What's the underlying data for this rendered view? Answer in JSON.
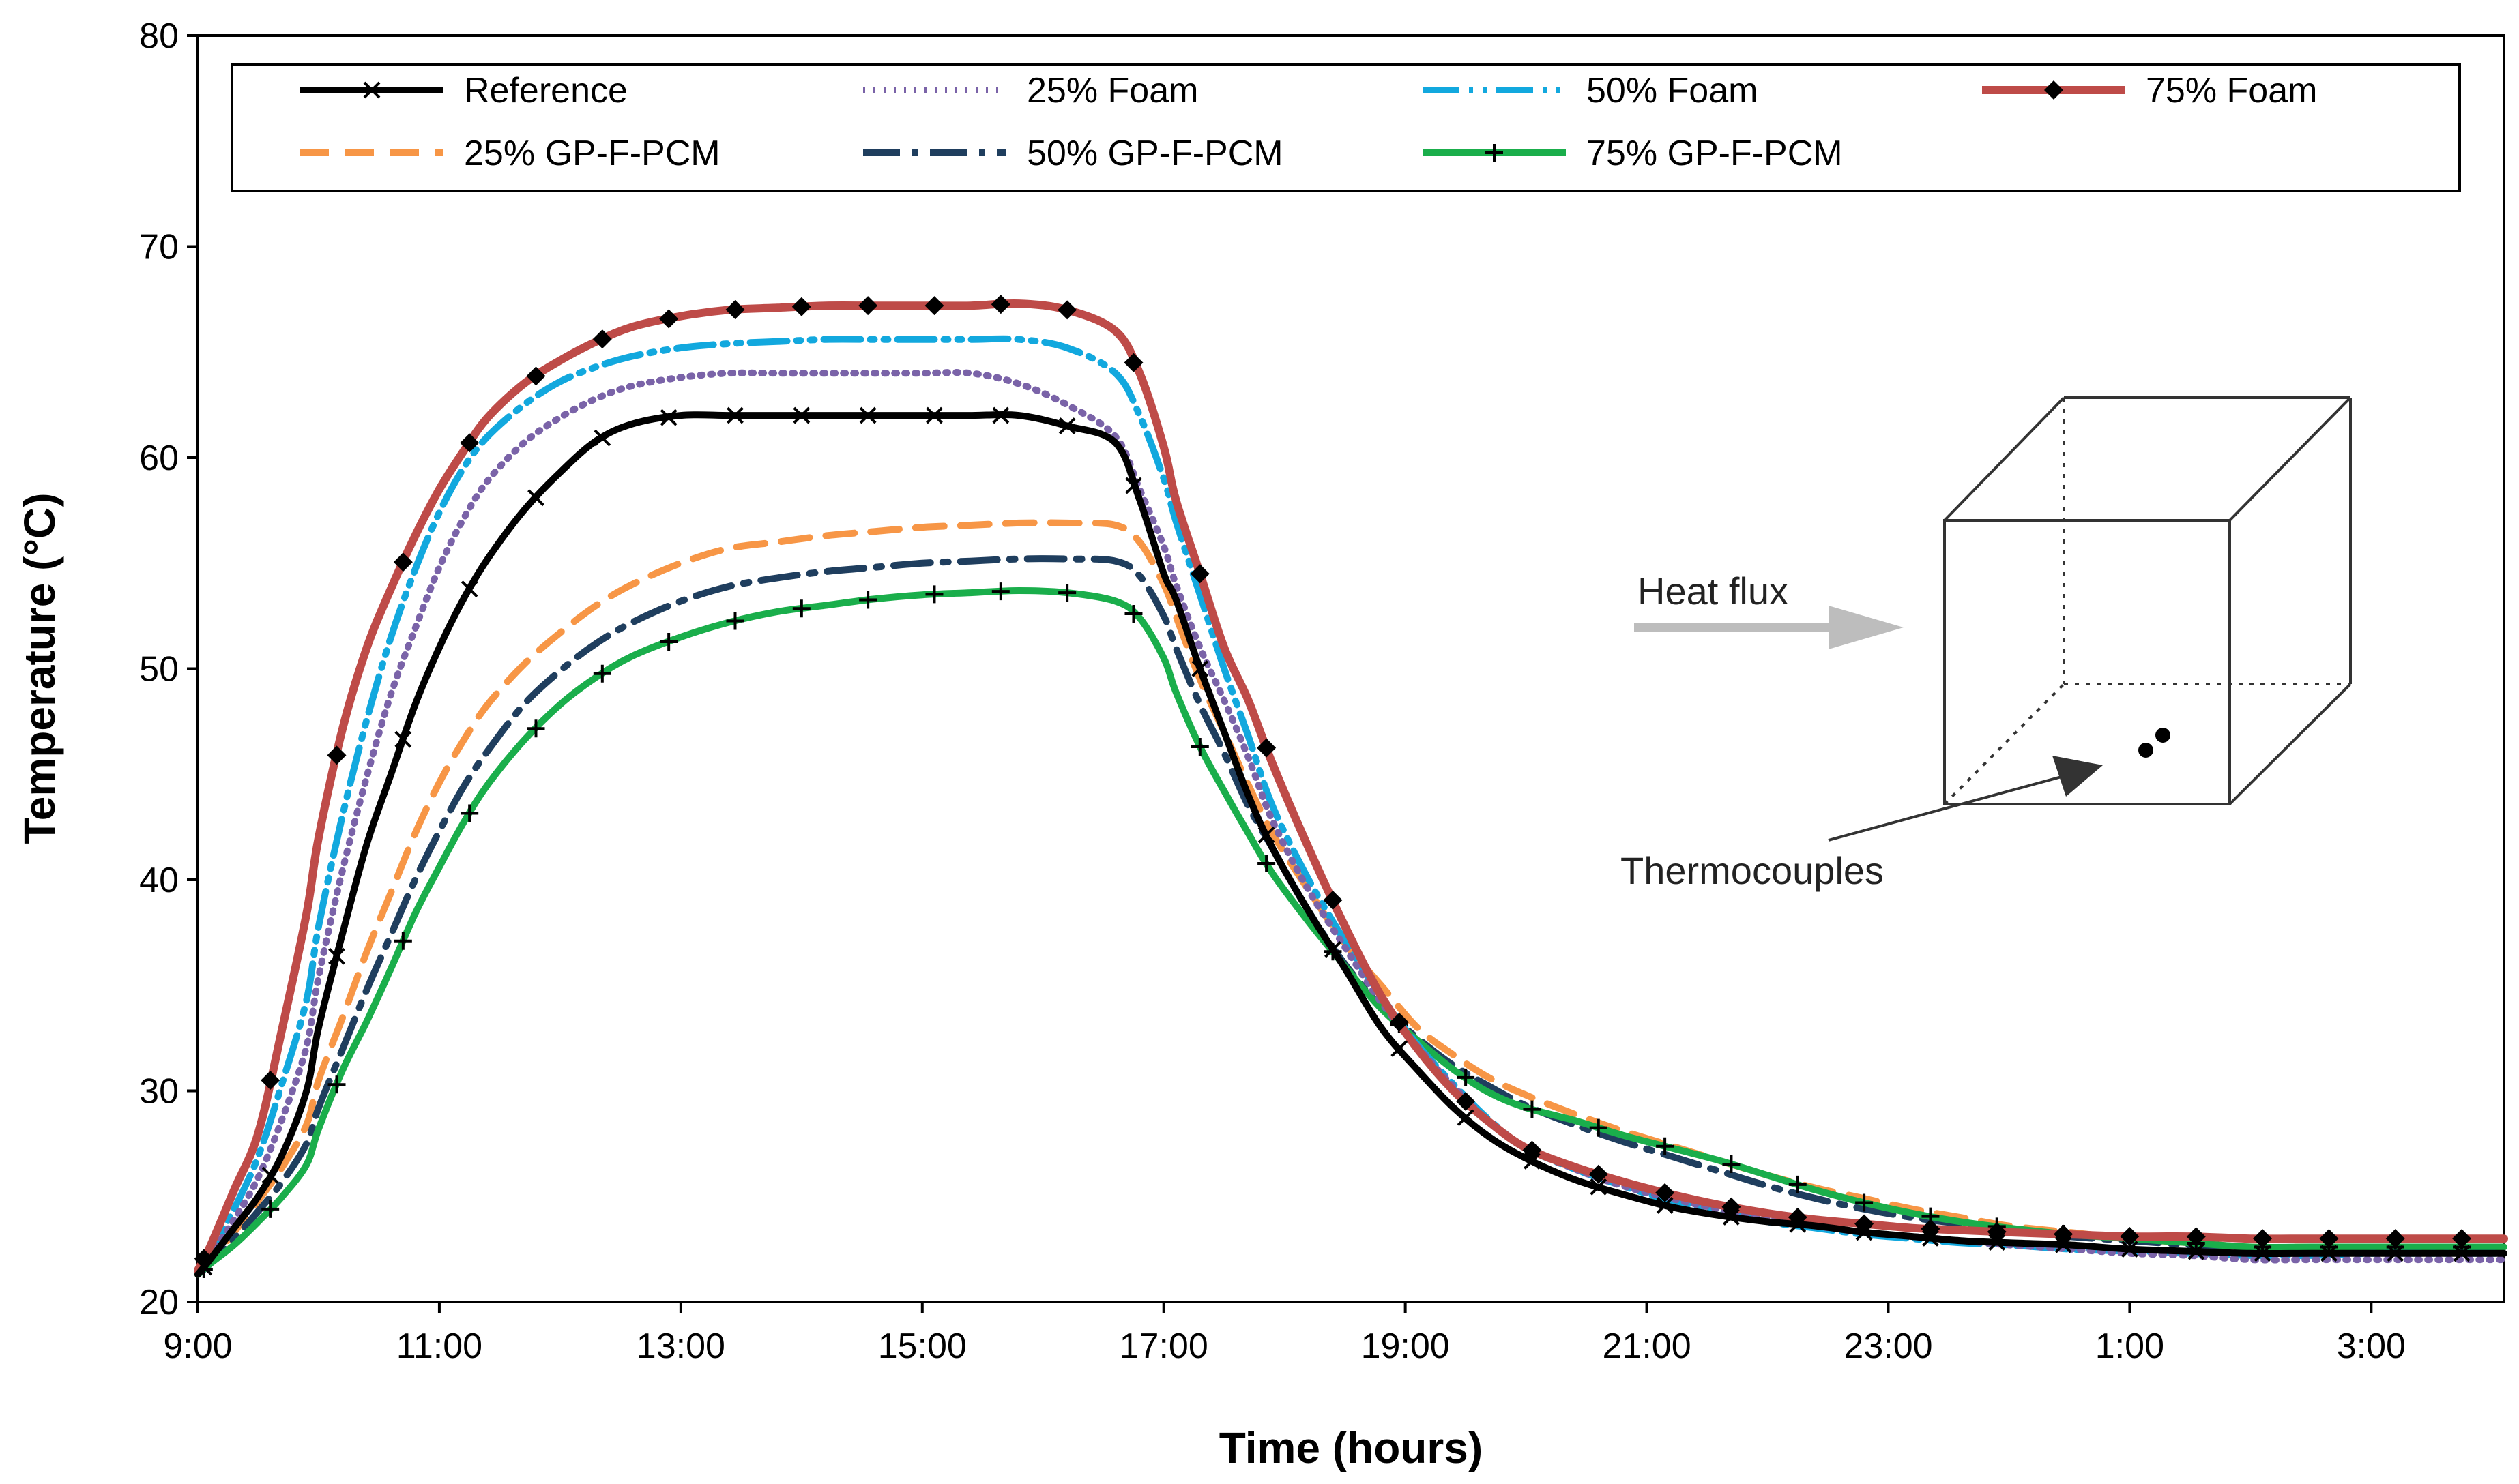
{
  "chart_data": {
    "type": "line",
    "title": "",
    "xlabel": "Time (hours)",
    "ylabel": "Temperature (°C)",
    "ylim": [
      20,
      80
    ],
    "yticks": [
      20,
      30,
      40,
      50,
      60,
      70,
      80
    ],
    "xlim": [
      0,
      19.1
    ],
    "xticks": [
      {
        "value": 0,
        "label": "9:00"
      },
      {
        "value": 2,
        "label": "11:00"
      },
      {
        "value": 4,
        "label": "13:00"
      },
      {
        "value": 6,
        "label": "15:00"
      },
      {
        "value": 8,
        "label": "17:00"
      },
      {
        "value": 10,
        "label": "19:00"
      },
      {
        "value": 12,
        "label": "21:00"
      },
      {
        "value": 14,
        "label": "23:00"
      },
      {
        "value": 16,
        "label": "1:00"
      },
      {
        "value": 18,
        "label": "3:00"
      }
    ],
    "grid": false,
    "legend_position": "top",
    "x": [
      0,
      0.1,
      0.3,
      0.5,
      0.7,
      0.9,
      1.0,
      1.2,
      1.4,
      1.6,
      1.8,
      2.0,
      2.2,
      2.4,
      2.7,
      3.0,
      3.3,
      3.6,
      4.0,
      4.4,
      4.8,
      5.2,
      5.6,
      6.0,
      6.4,
      6.8,
      7.2,
      7.6,
      7.8,
      8.0,
      8.1,
      8.3,
      8.5,
      8.7,
      8.9,
      9.2,
      9.5,
      9.8,
      10.1,
      10.4,
      10.7,
      11.0,
      11.4,
      11.8,
      12.2,
      12.6,
      13.0,
      13.4,
      13.8,
      14.2,
      14.6,
      15.0,
      15.5,
      16.0,
      16.5,
      17.0,
      17.5,
      18.0,
      18.5,
      19.1
    ],
    "series": [
      {
        "name": "Reference",
        "color": "#000000",
        "width": 10,
        "dash": "",
        "marker": "x",
        "values": [
          21.3,
          22.0,
          23.5,
          25.0,
          27.0,
          30.0,
          33.0,
          37.5,
          41.7,
          45.0,
          48.3,
          51.0,
          53.3,
          55.2,
          57.5,
          59.3,
          60.8,
          61.6,
          62.0,
          62.0,
          62.0,
          62.0,
          62.0,
          62.0,
          62.0,
          62.0,
          61.5,
          60.7,
          58.0,
          54.5,
          53.3,
          50.0,
          47.0,
          44.0,
          41.5,
          38.5,
          35.8,
          33.0,
          31.0,
          29.2,
          27.8,
          26.8,
          25.8,
          25.1,
          24.5,
          24.1,
          23.8,
          23.6,
          23.3,
          23.1,
          22.9,
          22.8,
          22.7,
          22.5,
          22.4,
          22.3,
          22.3,
          22.3,
          22.3,
          22.3
        ]
      },
      {
        "name": "25% Foam",
        "color": "#7A63A8",
        "width": 10,
        "dash": "3,12",
        "marker": "",
        "values": [
          21.4,
          22.2,
          23.9,
          25.9,
          28.7,
          32.1,
          35.4,
          40.5,
          44.9,
          48.8,
          51.9,
          54.8,
          57.1,
          58.9,
          60.7,
          61.9,
          62.8,
          63.4,
          63.8,
          64.0,
          64.0,
          64.0,
          64.0,
          64.0,
          64.0,
          63.5,
          62.5,
          61.0,
          58.5,
          55.8,
          54.0,
          51.0,
          48.5,
          45.8,
          42.8,
          39.5,
          36.8,
          34.2,
          32.1,
          30.2,
          28.5,
          27.3,
          26.3,
          25.5,
          24.9,
          24.4,
          24.0,
          23.6,
          23.3,
          23.1,
          22.9,
          22.7,
          22.5,
          22.3,
          22.2,
          22.0,
          22.0,
          22.0,
          22.0,
          22.0
        ]
      },
      {
        "name": "50% Foam",
        "color": "#12A8DE",
        "width": 10,
        "dash": "54,14,6,14,6,14",
        "marker": "",
        "values": [
          21.4,
          22.3,
          24.4,
          26.9,
          30.4,
          34.3,
          37.8,
          43.1,
          47.6,
          51.5,
          54.7,
          57.4,
          59.5,
          61.0,
          62.5,
          63.6,
          64.3,
          64.8,
          65.2,
          65.4,
          65.5,
          65.6,
          65.6,
          65.6,
          65.6,
          65.6,
          65.2,
          64.0,
          62.0,
          59.0,
          57.0,
          53.5,
          50.0,
          46.8,
          43.5,
          40.0,
          37.1,
          34.5,
          32.2,
          30.3,
          28.6,
          27.3,
          26.3,
          25.5,
          24.8,
          24.3,
          23.8,
          23.5,
          23.2,
          23.0,
          22.8,
          22.7,
          22.5,
          22.4,
          22.3,
          22.2,
          22.2,
          22.3,
          22.3,
          22.3
        ]
      },
      {
        "name": "75% Foam",
        "color": "#BE4B48",
        "width": 12,
        "dash": "",
        "marker": "diamond",
        "values": [
          21.5,
          22.6,
          25.3,
          28.0,
          33.0,
          38.4,
          42.0,
          47.2,
          51.0,
          53.8,
          56.3,
          58.5,
          60.3,
          61.9,
          63.5,
          64.6,
          65.5,
          66.2,
          66.7,
          67.0,
          67.1,
          67.2,
          67.2,
          67.2,
          67.2,
          67.3,
          67.0,
          66.0,
          64.0,
          60.5,
          58.0,
          54.5,
          51.0,
          48.5,
          45.5,
          41.5,
          37.8,
          34.5,
          32.0,
          30.0,
          28.5,
          27.3,
          26.4,
          25.7,
          25.1,
          24.6,
          24.2,
          23.9,
          23.7,
          23.5,
          23.4,
          23.3,
          23.2,
          23.1,
          23.1,
          23.0,
          23.0,
          23.0,
          23.0,
          23.0
        ]
      },
      {
        "name": "25% GP-F-PCM",
        "color": "#F79646",
        "width": 10,
        "dash": "42,24",
        "marker": "",
        "values": [
          21.3,
          21.9,
          23.3,
          24.8,
          26.4,
          28.4,
          30.5,
          33.5,
          36.6,
          39.4,
          42.2,
          44.6,
          46.6,
          48.3,
          50.2,
          51.7,
          53.0,
          54.0,
          55.0,
          55.7,
          56.0,
          56.3,
          56.5,
          56.7,
          56.8,
          56.9,
          56.9,
          56.8,
          56.0,
          54.0,
          52.5,
          49.5,
          47.0,
          44.5,
          42.2,
          39.5,
          37.0,
          35.0,
          33.0,
          31.7,
          30.6,
          29.8,
          28.9,
          28.1,
          27.4,
          26.7,
          26.0,
          25.4,
          24.9,
          24.4,
          24.0,
          23.6,
          23.3,
          23.0,
          22.8,
          22.6,
          22.6,
          22.6,
          22.6,
          22.6
        ]
      },
      {
        "name": "50% GP-F-PCM",
        "color": "#1F3E5E",
        "width": 10,
        "dash": "54,18,8,18",
        "marker": "",
        "values": [
          21.3,
          21.8,
          23.0,
          24.3,
          25.7,
          27.5,
          29.2,
          32.0,
          34.8,
          37.4,
          40.0,
          42.3,
          44.4,
          46.1,
          48.3,
          49.9,
          51.2,
          52.2,
          53.2,
          53.9,
          54.3,
          54.6,
          54.8,
          55.0,
          55.1,
          55.2,
          55.2,
          55.1,
          54.4,
          52.5,
          51.0,
          48.3,
          46.0,
          43.5,
          41.5,
          38.5,
          36.0,
          34.0,
          32.5,
          31.2,
          30.2,
          29.3,
          28.4,
          27.6,
          26.9,
          26.2,
          25.5,
          24.9,
          24.4,
          24.0,
          23.7,
          23.4,
          23.1,
          22.9,
          22.7,
          22.5,
          22.5,
          22.5,
          22.5,
          22.5
        ]
      },
      {
        "name": "75% GP-F-PCM",
        "color": "#1AAE4B",
        "width": 10,
        "dash": "",
        "marker": "plus",
        "values": [
          21.3,
          21.8,
          22.7,
          23.8,
          25.0,
          26.5,
          28.2,
          31.0,
          33.3,
          35.8,
          38.4,
          40.6,
          42.7,
          44.5,
          46.6,
          48.3,
          49.6,
          50.6,
          51.5,
          52.2,
          52.7,
          53.0,
          53.3,
          53.5,
          53.6,
          53.7,
          53.6,
          53.2,
          52.4,
          50.5,
          48.9,
          46.3,
          44.2,
          42.2,
          40.3,
          38.0,
          35.9,
          33.9,
          32.4,
          31.0,
          29.9,
          29.2,
          28.6,
          27.9,
          27.3,
          26.7,
          26.0,
          25.3,
          24.7,
          24.2,
          23.8,
          23.5,
          23.2,
          23.0,
          22.8,
          22.6,
          22.6,
          22.6,
          22.6,
          22.6
        ]
      }
    ]
  },
  "inset": {
    "heat_flux_label": "Heat flux",
    "thermocouples_label": "Thermocouples"
  }
}
